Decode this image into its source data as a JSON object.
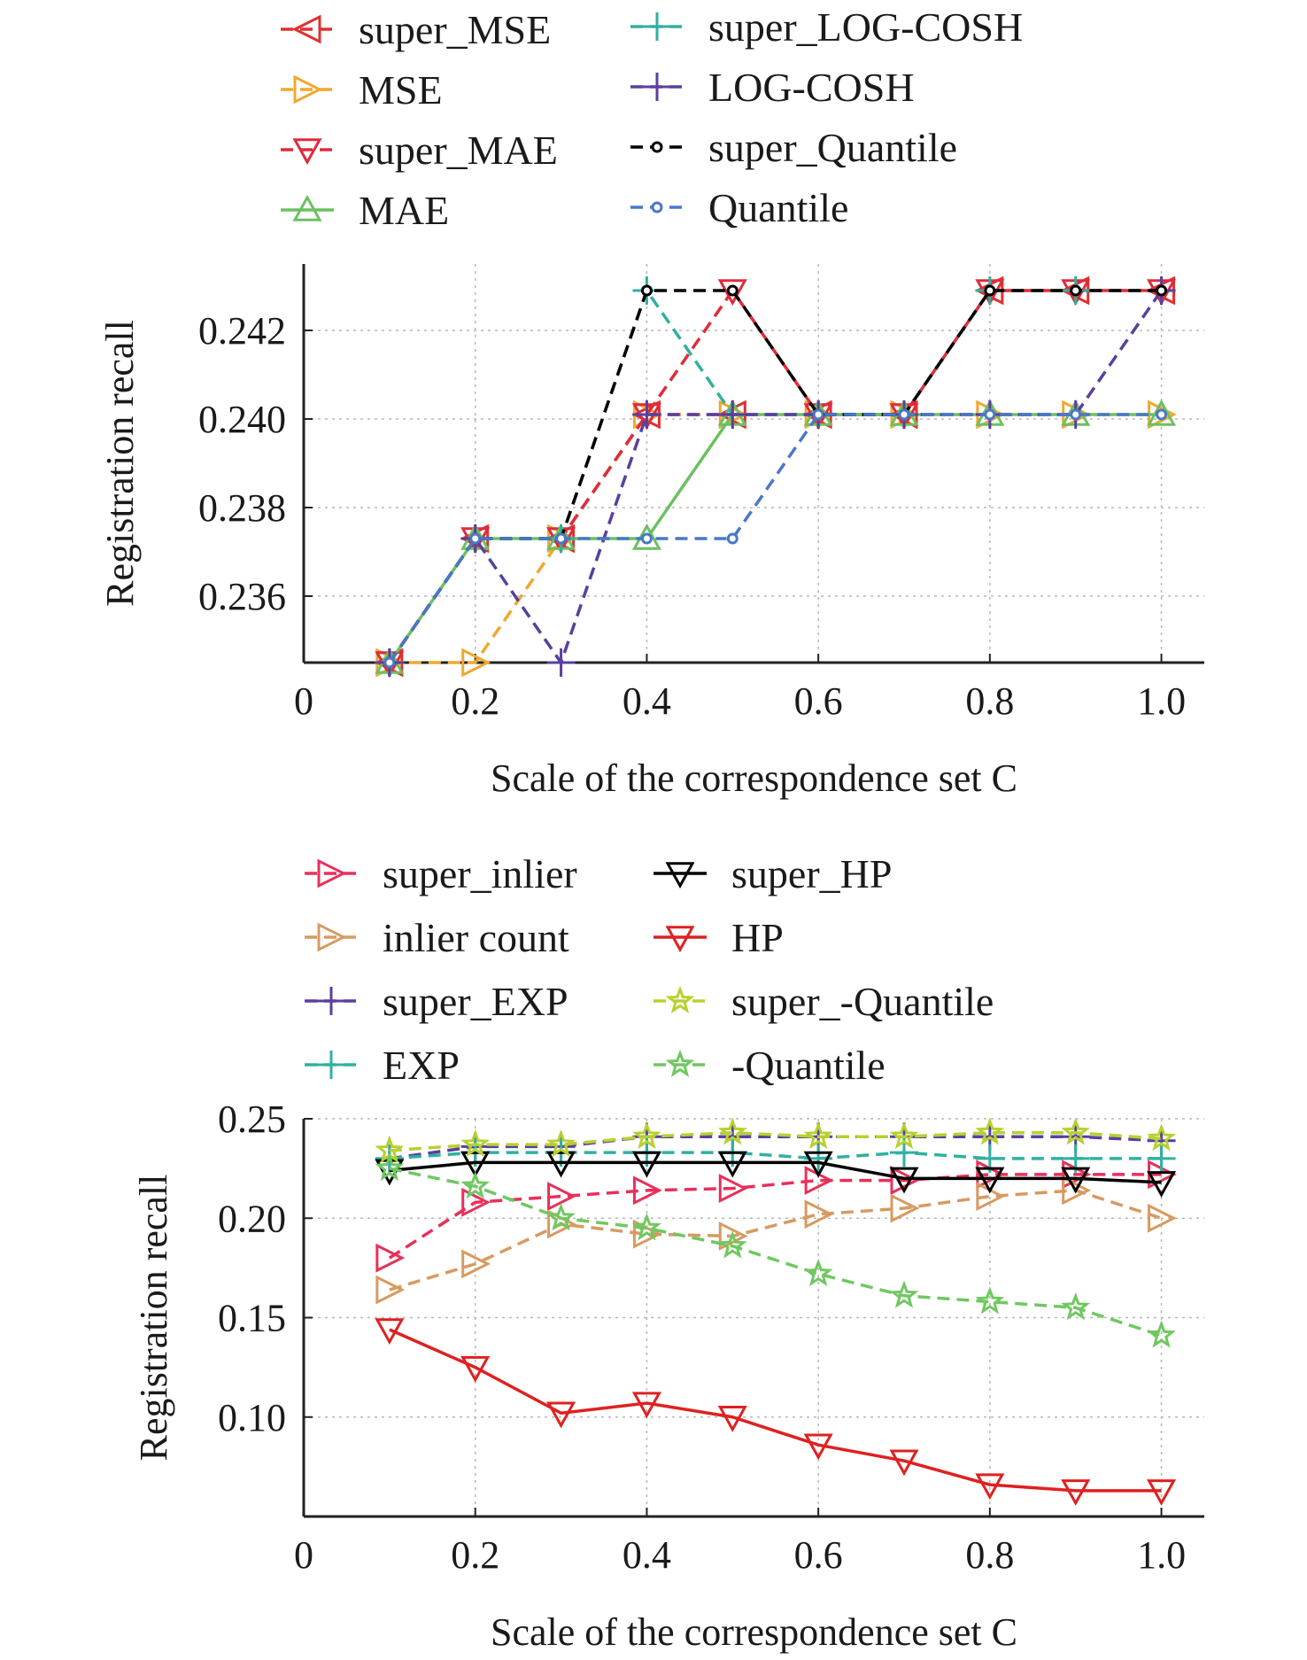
{
  "chart_data": [
    {
      "type": "line",
      "xlabel": "Scale of the correspondence set C",
      "ylabel": "Registration recall",
      "xlim": [
        0,
        1.05
      ],
      "ylim": [
        0.2345,
        0.2435
      ],
      "xticks": [
        "0",
        "0.2",
        "0.4",
        "0.6",
        "0.8",
        "1.0"
      ],
      "yticks": [
        "0.236",
        "0.238",
        "0.240",
        "0.242"
      ],
      "grid": true,
      "legend_position": "top",
      "x": [
        0.1,
        0.2,
        0.3,
        0.4,
        0.5,
        0.6,
        0.7,
        0.8,
        0.9,
        1.0
      ],
      "series": [
        {
          "name": "super_MSE",
          "color": "#e03030",
          "marker": "triangle-left",
          "dashed": true,
          "values": [
            0.2345,
            0.2373,
            0.2373,
            0.2401,
            0.2401,
            0.2401,
            0.2401,
            0.2429,
            0.2429,
            0.2429
          ]
        },
        {
          "name": "MSE",
          "color": "#f0a830",
          "marker": "triangle-right",
          "dashed": true,
          "values": [
            0.2345,
            0.2345,
            0.2373,
            0.2401,
            0.2401,
            0.2401,
            0.2401,
            0.2401,
            0.2401,
            0.2401
          ]
        },
        {
          "name": "super_MAE",
          "color": "#e02b3a",
          "marker": "triangle-down",
          "dashed": true,
          "values": [
            0.2345,
            0.2373,
            0.2373,
            0.2401,
            0.2429,
            0.2401,
            0.2401,
            0.2429,
            0.2429,
            0.2429
          ]
        },
        {
          "name": "MAE",
          "color": "#6cc060",
          "marker": "triangle-up",
          "dashed": false,
          "values": [
            0.2345,
            0.2373,
            0.2373,
            0.2373,
            0.2401,
            0.2401,
            0.2401,
            0.2401,
            0.2401,
            0.2401
          ]
        },
        {
          "name": "super_LOG-COSH",
          "color": "#30b0a0",
          "marker": "plus",
          "dashed": true,
          "values": [
            0.2345,
            0.2373,
            0.2373,
            0.2429,
            0.2401,
            0.2401,
            0.2401,
            0.2429,
            0.2429,
            0.2429
          ]
        },
        {
          "name": "LOG-COSH",
          "color": "#5a3fa0",
          "marker": "plus",
          "dashed": true,
          "values": [
            0.2345,
            0.2373,
            0.2345,
            0.2401,
            0.2401,
            0.2401,
            0.2401,
            0.2401,
            0.2401,
            0.2429
          ]
        },
        {
          "name": "super_Quantile",
          "color": "#000000",
          "marker": "circle",
          "dashed": true,
          "values": [
            0.2345,
            0.2373,
            0.2373,
            0.2429,
            0.2429,
            0.2401,
            0.2401,
            0.2429,
            0.2429,
            0.2429
          ]
        },
        {
          "name": "Quantile",
          "color": "#4a78c8",
          "marker": "circle",
          "dashed": true,
          "values": [
            0.2345,
            0.2373,
            0.2373,
            0.2373,
            0.2373,
            0.2401,
            0.2401,
            0.2401,
            0.2401,
            0.2401
          ]
        }
      ]
    },
    {
      "type": "line",
      "xlabel": "Scale of the correspondence set C",
      "ylabel": "Registration recall",
      "xlim": [
        0,
        1.05
      ],
      "ylim": [
        0.05,
        0.25
      ],
      "xticks": [
        "0",
        "0.2",
        "0.4",
        "0.6",
        "0.8",
        "1.0"
      ],
      "yticks": [
        "0.10",
        "0.15",
        "0.20",
        "0.25"
      ],
      "grid": true,
      "legend_position": "top",
      "x": [
        0.1,
        0.2,
        0.3,
        0.4,
        0.5,
        0.6,
        0.7,
        0.8,
        0.9,
        1.0
      ],
      "series": [
        {
          "name": "super_inlier",
          "color": "#e8305a",
          "marker": "triangle-right",
          "dashed": true,
          "values": [
            0.18,
            0.208,
            0.211,
            0.214,
            0.215,
            0.219,
            0.219,
            0.222,
            0.222,
            0.222
          ]
        },
        {
          "name": "inlier count",
          "color": "#d89a60",
          "marker": "triangle-right",
          "dashed": true,
          "values": [
            0.164,
            0.177,
            0.197,
            0.192,
            0.191,
            0.202,
            0.205,
            0.211,
            0.214,
            0.2
          ]
        },
        {
          "name": "super_EXP",
          "color": "#5a3fa0",
          "marker": "plus",
          "dashed": true,
          "values": [
            0.23,
            0.236,
            0.236,
            0.241,
            0.241,
            0.241,
            0.241,
            0.241,
            0.241,
            0.239
          ]
        },
        {
          "name": "EXP",
          "color": "#30b0a0",
          "marker": "plus",
          "dashed": true,
          "values": [
            0.23,
            0.233,
            0.233,
            0.233,
            0.233,
            0.23,
            0.233,
            0.23,
            0.23,
            0.23
          ]
        },
        {
          "name": "super_HP",
          "color": "#000000",
          "marker": "triangle-down",
          "dashed": false,
          "values": [
            0.224,
            0.228,
            0.228,
            0.228,
            0.228,
            0.228,
            0.22,
            0.22,
            0.22,
            0.218
          ]
        },
        {
          "name": "HP",
          "color": "#e02020",
          "marker": "triangle-down",
          "dashed": false,
          "values": [
            0.144,
            0.125,
            0.102,
            0.107,
            0.1,
            0.086,
            0.078,
            0.066,
            0.063,
            0.063
          ]
        },
        {
          "name": "super_-Quantile",
          "color": "#b8d030",
          "marker": "star",
          "dashed": true,
          "values": [
            0.234,
            0.237,
            0.237,
            0.241,
            0.243,
            0.241,
            0.241,
            0.243,
            0.243,
            0.24
          ]
        },
        {
          "name": "-Quantile",
          "color": "#70c860",
          "marker": "star",
          "dashed": true,
          "values": [
            0.225,
            0.216,
            0.2,
            0.195,
            0.186,
            0.172,
            0.161,
            0.158,
            0.155,
            0.141
          ]
        }
      ]
    }
  ]
}
